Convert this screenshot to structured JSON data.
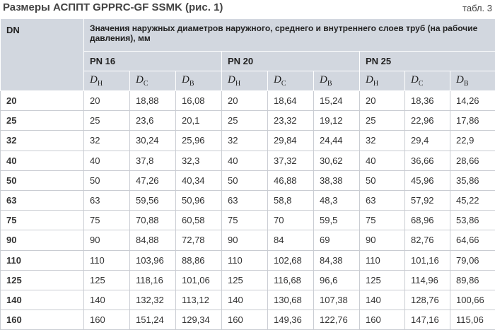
{
  "header": {
    "title": "Размеры АСППТ GPPRC-GF SSMK (рис. 1)",
    "table_number": "табл. 3"
  },
  "table": {
    "dn_header": "DN",
    "group_header": "Значения наружных диаметров наружного, среднего и внутреннего слоев труб (на рабочие давления), мм",
    "pressure_groups": [
      "PN 16",
      "PN 20",
      "PN 25"
    ],
    "subheaders": [
      {
        "symbol": "D",
        "sub": "Н"
      },
      {
        "symbol": "D",
        "sub": "С"
      },
      {
        "symbol": "D",
        "sub": "В"
      },
      {
        "symbol": "D",
        "sub": "Н"
      },
      {
        "symbol": "D",
        "sub": "С"
      },
      {
        "symbol": "D",
        "sub": "В"
      },
      {
        "symbol": "D",
        "sub": "Н"
      },
      {
        "symbol": "D",
        "sub": "С"
      },
      {
        "symbol": "D",
        "sub": "В"
      }
    ],
    "rows": [
      [
        "20",
        "20",
        "18,88",
        "16,08",
        "20",
        "18,64",
        "15,24",
        "20",
        "18,36",
        "14,26"
      ],
      [
        "25",
        "25",
        "23,6",
        "20,1",
        "25",
        "23,32",
        "19,12",
        "25",
        "22,96",
        "17,86"
      ],
      [
        "32",
        "32",
        "30,24",
        "25,96",
        "32",
        "29,84",
        "24,44",
        "32",
        "29,4",
        "22,9"
      ],
      [
        "40",
        "40",
        "37,8",
        "32,3",
        "40",
        "37,32",
        "30,62",
        "40",
        "36,66",
        "28,66"
      ],
      [
        "50",
        "50",
        "47,26",
        "40,34",
        "50",
        "46,88",
        "38,38",
        "50",
        "45,96",
        "35,86"
      ],
      [
        "63",
        "63",
        "59,56",
        "50,96",
        "63",
        "58,8",
        "48,3",
        "63",
        "57,92",
        "45,22"
      ],
      [
        "75",
        "75",
        "70,88",
        "60,58",
        "75",
        "70",
        "59,5",
        "75",
        "68,96",
        "53,86"
      ],
      [
        "90",
        "90",
        "84,88",
        "72,78",
        "90",
        "84",
        "69",
        "90",
        "82,76",
        "64,66"
      ],
      [
        "110",
        "110",
        "103,96",
        "88,86",
        "110",
        "102,68",
        "84,38",
        "110",
        "101,16",
        "79,06"
      ],
      [
        "125",
        "125",
        "118,16",
        "101,06",
        "125",
        "116,68",
        "96,6",
        "125",
        "114,96",
        "89,86"
      ],
      [
        "140",
        "140",
        "132,32",
        "113,12",
        "140",
        "130,68",
        "107,38",
        "140",
        "128,76",
        "100,66"
      ],
      [
        "160",
        "160",
        "151,24",
        "129,34",
        "160",
        "149,36",
        "122,76",
        "160",
        "147,16",
        "115,06"
      ]
    ]
  }
}
